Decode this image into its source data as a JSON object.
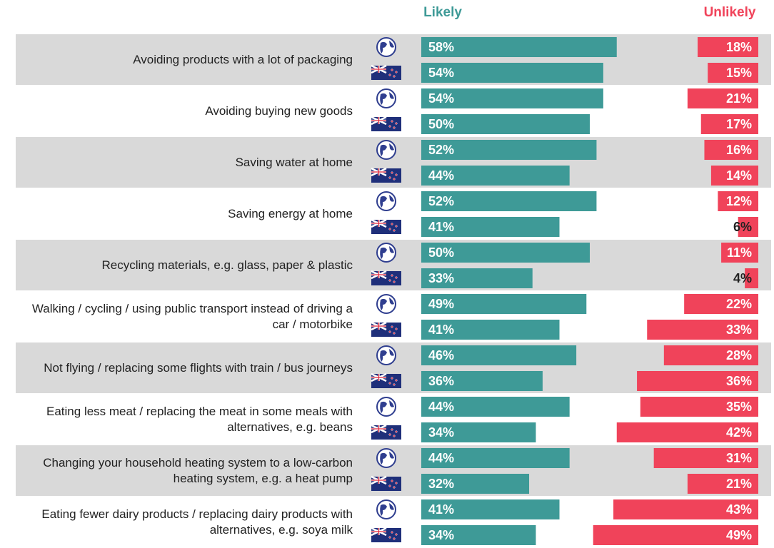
{
  "chart_data": {
    "type": "bar",
    "categories": [
      "Avoiding products with a lot of packaging",
      "Avoiding buying new goods",
      "Saving water at home",
      "Saving energy at home",
      "Recycling materials, e.g. glass, paper & plastic",
      "Walking / cycling / using public transport instead of driving a car / motorbike",
      "Not flying / replacing some flights with train / bus journeys",
      "Eating less meat / replacing the meat in some meals with alternatives, e.g. beans",
      "Changing your household heating system to a low-carbon heating system, e.g. a heat pump",
      "Eating fewer dairy products / replacing dairy products with alternatives, e.g. soya milk"
    ],
    "series": [
      {
        "name": "Likely",
        "color": "#3e9a97",
        "values": [
          [
            58,
            54
          ],
          [
            54,
            50
          ],
          [
            52,
            44
          ],
          [
            52,
            41
          ],
          [
            50,
            33
          ],
          [
            49,
            41
          ],
          [
            46,
            36
          ],
          [
            44,
            34
          ],
          [
            44,
            32
          ],
          [
            41,
            34
          ]
        ],
        "value_labels": [
          [
            "58%",
            "54%"
          ],
          [
            "54%",
            "50%"
          ],
          [
            "52%",
            "44%"
          ],
          [
            "52%",
            "41%"
          ],
          [
            "50%",
            "33%"
          ],
          [
            "49%",
            "41%"
          ],
          [
            "46%",
            "36%"
          ],
          [
            "44%",
            "34%"
          ],
          [
            "44%",
            "32%"
          ],
          [
            "41%",
            "34%"
          ]
        ]
      },
      {
        "name": "Unlikely",
        "color": "#f0435a",
        "values": [
          [
            18,
            15
          ],
          [
            21,
            17
          ],
          [
            16,
            14
          ],
          [
            12,
            6
          ],
          [
            11,
            4
          ],
          [
            22,
            33
          ],
          [
            28,
            36
          ],
          [
            35,
            42
          ],
          [
            31,
            21
          ],
          [
            43,
            49
          ]
        ],
        "value_labels": [
          [
            "18%",
            "15%"
          ],
          [
            "21%",
            "17%"
          ],
          [
            "16%",
            "14%"
          ],
          [
            "12%",
            "6%"
          ],
          [
            "11%",
            "4%"
          ],
          [
            "22%",
            "33%"
          ],
          [
            "28%",
            "36%"
          ],
          [
            "35%",
            "42%"
          ],
          [
            "31%",
            "21%"
          ],
          [
            "43%",
            "49%"
          ]
        ]
      }
    ]
  }
}
